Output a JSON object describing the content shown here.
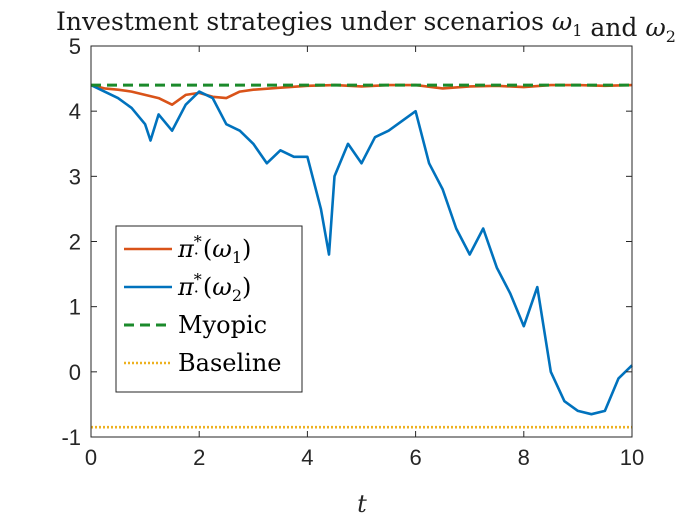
{
  "chart_data": {
    "type": "line",
    "title": "Investment strategies under scenarios ω1 and ω2",
    "xlabel": "t",
    "ylabel": "",
    "xlim": [
      0,
      10
    ],
    "ylim": [
      -1,
      5
    ],
    "xticks": [
      0,
      2,
      4,
      6,
      8,
      10
    ],
    "yticks": [
      -1,
      0,
      1,
      2,
      3,
      4,
      5
    ],
    "grid": false,
    "legend_position": "center-left",
    "series": [
      {
        "name": "π*.(ω1)",
        "color": "#D95319",
        "style": "solid",
        "x": [
          0,
          0.25,
          0.5,
          0.75,
          1.0,
          1.25,
          1.5,
          1.75,
          2.0,
          2.25,
          2.5,
          2.75,
          3.0,
          3.5,
          4.0,
          4.5,
          5.0,
          5.5,
          6.0,
          6.5,
          7.0,
          7.5,
          8.0,
          8.5,
          9.0,
          9.5,
          10.0
        ],
        "values": [
          4.4,
          4.35,
          4.33,
          4.3,
          4.25,
          4.2,
          4.1,
          4.25,
          4.28,
          4.22,
          4.2,
          4.3,
          4.33,
          4.36,
          4.39,
          4.4,
          4.38,
          4.4,
          4.4,
          4.35,
          4.38,
          4.39,
          4.37,
          4.4,
          4.4,
          4.39,
          4.4
        ]
      },
      {
        "name": "π*.(ω2)",
        "color": "#0072BD",
        "style": "solid",
        "x": [
          0,
          0.25,
          0.5,
          0.75,
          1.0,
          1.1,
          1.25,
          1.5,
          1.75,
          2.0,
          2.25,
          2.5,
          2.75,
          3.0,
          3.25,
          3.5,
          3.75,
          4.0,
          4.25,
          4.4,
          4.5,
          4.75,
          5.0,
          5.25,
          5.5,
          5.75,
          6.0,
          6.25,
          6.5,
          6.75,
          7.0,
          7.25,
          7.5,
          7.75,
          8.0,
          8.25,
          8.5,
          8.75,
          9.0,
          9.25,
          9.5,
          9.75,
          10.0
        ],
        "values": [
          4.4,
          4.3,
          4.2,
          4.05,
          3.8,
          3.55,
          3.95,
          3.7,
          4.1,
          4.3,
          4.2,
          3.8,
          3.7,
          3.5,
          3.2,
          3.4,
          3.3,
          3.3,
          2.5,
          1.8,
          3.0,
          3.5,
          3.2,
          3.6,
          3.7,
          3.85,
          4.0,
          3.2,
          2.8,
          2.2,
          1.8,
          2.2,
          1.6,
          1.2,
          0.7,
          1.3,
          0.0,
          -0.45,
          -0.6,
          -0.65,
          -0.6,
          -0.1,
          0.1
        ]
      },
      {
        "name": "Myopic",
        "color": "#1B8A2B",
        "style": "dashed",
        "x": [
          0,
          10
        ],
        "values": [
          4.4,
          4.4
        ]
      },
      {
        "name": "Baseline",
        "color": "#EDB120",
        "style": "dotted",
        "x": [
          0,
          10
        ],
        "values": [
          -0.85,
          -0.85
        ]
      }
    ]
  }
}
